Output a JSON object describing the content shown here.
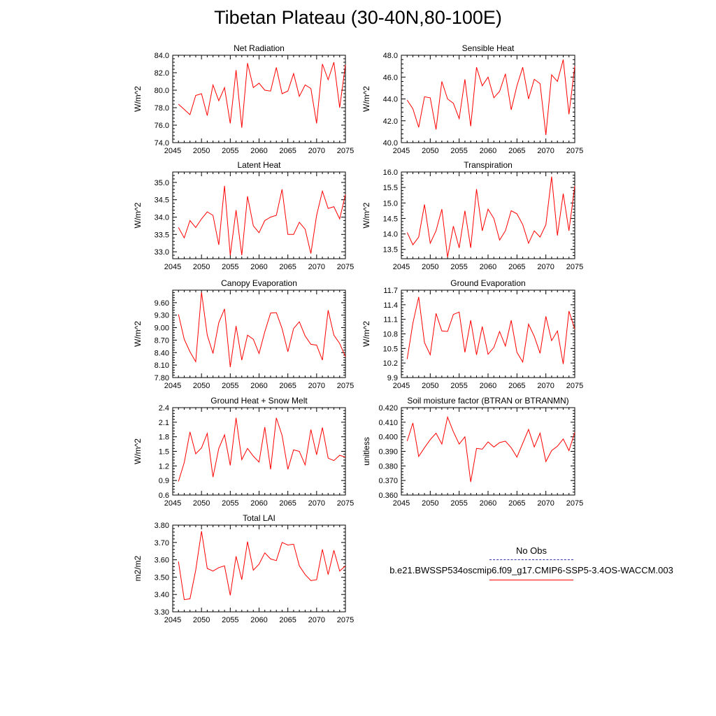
{
  "title": "Tibetan Plateau (30-40N,80-100E)",
  "legend": {
    "entries": [
      {
        "label": "No Obs",
        "color": "#3333aa",
        "style": "dashed"
      },
      {
        "label": "b.e21.BWSSP534oscmip6.f09_g17.CMIP6-SSP5-3.4OS-WACCM.003",
        "color": "#ff0000",
        "style": "solid"
      }
    ]
  },
  "chart_data": [
    {
      "type": "line",
      "title": "Net Radiation",
      "ylabel": "W/m^2",
      "xlim": [
        2045,
        2075
      ],
      "ylim": [
        74.0,
        84.0
      ],
      "xticks": [
        2045,
        2050,
        2055,
        2060,
        2065,
        2070,
        2075
      ],
      "yticks": [
        "74.0",
        "76.0",
        "78.0",
        "80.0",
        "82.0",
        "84.0"
      ],
      "series": [
        {
          "color": "#ff0000",
          "x": [
            2046,
            2047,
            2048,
            2049,
            2050,
            2051,
            2052,
            2053,
            2054,
            2055,
            2056,
            2057,
            2058,
            2059,
            2060,
            2061,
            2062,
            2063,
            2064,
            2065,
            2066,
            2067,
            2068,
            2069,
            2070,
            2071,
            2072,
            2073,
            2074,
            2075
          ],
          "values": [
            78.4,
            77.8,
            77.2,
            79.4,
            79.6,
            77.1,
            80.6,
            78.8,
            80.3,
            76.2,
            82.3,
            75.7,
            83.1,
            80.3,
            80.8,
            80.0,
            79.9,
            82.6,
            79.6,
            79.9,
            81.9,
            79.3,
            80.6,
            80.2,
            76.2,
            83.0,
            81.2,
            83.2,
            78.0,
            82.9
          ]
        }
      ]
    },
    {
      "type": "line",
      "title": "Sensible Heat",
      "ylabel": "W/m^2",
      "xlim": [
        2045,
        2075
      ],
      "ylim": [
        40.0,
        48.0
      ],
      "xticks": [
        2045,
        2050,
        2055,
        2060,
        2065,
        2070,
        2075
      ],
      "yticks": [
        "40.0",
        "42.0",
        "44.0",
        "46.0",
        "48.0"
      ],
      "series": [
        {
          "color": "#ff0000",
          "x": [
            2046,
            2047,
            2048,
            2049,
            2050,
            2051,
            2052,
            2053,
            2054,
            2055,
            2056,
            2057,
            2058,
            2059,
            2060,
            2061,
            2062,
            2063,
            2064,
            2065,
            2066,
            2067,
            2068,
            2069,
            2070,
            2071,
            2072,
            2073,
            2074,
            2075
          ],
          "values": [
            43.9,
            43.1,
            41.4,
            44.2,
            44.1,
            41.2,
            45.6,
            44.0,
            43.6,
            42.2,
            45.8,
            41.5,
            46.9,
            45.2,
            46.0,
            44.1,
            44.7,
            46.3,
            43.0,
            45.2,
            46.9,
            44.0,
            45.8,
            45.4,
            40.7,
            46.2,
            45.6,
            47.6,
            42.6,
            47.0
          ]
        }
      ]
    },
    {
      "type": "line",
      "title": "Latent Heat",
      "ylabel": "W/m^2",
      "xlim": [
        2045,
        2075
      ],
      "ylim": [
        32.8,
        35.3
      ],
      "xticks": [
        2045,
        2050,
        2055,
        2060,
        2065,
        2070,
        2075
      ],
      "yticks": [
        "33.0",
        "33.5",
        "34.0",
        "34.5",
        "35.0"
      ],
      "series": [
        {
          "color": "#ff0000",
          "x": [
            2046,
            2047,
            2048,
            2049,
            2050,
            2051,
            2052,
            2053,
            2054,
            2055,
            2056,
            2057,
            2058,
            2059,
            2060,
            2061,
            2062,
            2063,
            2064,
            2065,
            2066,
            2067,
            2068,
            2069,
            2070,
            2071,
            2072,
            2073,
            2074,
            2075
          ],
          "values": [
            33.7,
            33.4,
            33.9,
            33.7,
            33.95,
            34.15,
            34.05,
            33.2,
            34.9,
            32.9,
            34.2,
            32.9,
            34.6,
            33.75,
            33.55,
            33.9,
            34.0,
            34.05,
            34.8,
            33.5,
            33.5,
            33.85,
            33.65,
            32.95,
            34.05,
            34.75,
            34.25,
            34.3,
            33.95,
            34.65
          ]
        }
      ]
    },
    {
      "type": "line",
      "title": "Transpiration",
      "ylabel": "W/m^2",
      "xlim": [
        2045,
        2075
      ],
      "ylim": [
        13.2,
        16.0
      ],
      "xticks": [
        2045,
        2050,
        2055,
        2060,
        2065,
        2070,
        2075
      ],
      "yticks": [
        "13.5",
        "14.0",
        "14.5",
        "15.0",
        "15.5",
        "16.0"
      ],
      "series": [
        {
          "color": "#ff0000",
          "x": [
            2046,
            2047,
            2048,
            2049,
            2050,
            2051,
            2052,
            2053,
            2054,
            2055,
            2056,
            2057,
            2058,
            2059,
            2060,
            2061,
            2062,
            2063,
            2064,
            2065,
            2066,
            2067,
            2068,
            2069,
            2070,
            2071,
            2072,
            2073,
            2074,
            2075
          ],
          "values": [
            14.05,
            13.65,
            13.9,
            14.95,
            13.7,
            14.1,
            14.8,
            13.25,
            14.25,
            13.55,
            14.75,
            13.55,
            15.45,
            14.1,
            14.8,
            14.5,
            13.8,
            14.1,
            14.75,
            14.65,
            14.3,
            13.7,
            14.1,
            13.9,
            14.3,
            15.85,
            13.95,
            15.3,
            14.1,
            15.55
          ]
        }
      ]
    },
    {
      "type": "line",
      "title": "Canopy Evaporation",
      "ylabel": "W/m^2",
      "xlim": [
        2045,
        2075
      ],
      "ylim": [
        7.8,
        9.9
      ],
      "xticks": [
        2045,
        2050,
        2055,
        2060,
        2065,
        2070,
        2075
      ],
      "yticks": [
        "7.80",
        "8.10",
        "8.40",
        "8.70",
        "9.00",
        "9.30",
        "9.60"
      ],
      "series": [
        {
          "color": "#ff0000",
          "x": [
            2046,
            2047,
            2048,
            2049,
            2050,
            2051,
            2052,
            2053,
            2054,
            2055,
            2056,
            2057,
            2058,
            2059,
            2060,
            2061,
            2062,
            2063,
            2064,
            2065,
            2066,
            2067,
            2068,
            2069,
            2070,
            2071,
            2072,
            2073,
            2074,
            2075
          ],
          "values": [
            9.32,
            8.72,
            8.42,
            8.18,
            9.85,
            8.82,
            8.38,
            9.12,
            9.45,
            8.05,
            9.04,
            8.22,
            8.82,
            8.72,
            8.38,
            8.9,
            9.35,
            9.36,
            8.98,
            8.42,
            8.98,
            9.14,
            8.8,
            8.6,
            8.58,
            8.22,
            9.42,
            8.82,
            8.62,
            8.3
          ]
        }
      ]
    },
    {
      "type": "line",
      "title": "Ground Evaporation",
      "ylabel": "W/m^2",
      "xlim": [
        2045,
        2075
      ],
      "ylim": [
        9.9,
        11.7
      ],
      "xticks": [
        2045,
        2050,
        2055,
        2060,
        2065,
        2070,
        2075
      ],
      "yticks": [
        "9.9",
        "10.2",
        "10.5",
        "10.8",
        "11.1",
        "11.4",
        "11.7"
      ],
      "series": [
        {
          "color": "#ff0000",
          "x": [
            2046,
            2047,
            2048,
            2049,
            2050,
            2051,
            2052,
            2053,
            2054,
            2055,
            2056,
            2057,
            2058,
            2059,
            2060,
            2061,
            2062,
            2063,
            2064,
            2065,
            2066,
            2067,
            2068,
            2069,
            2070,
            2071,
            2072,
            2073,
            2074,
            2075
          ],
          "values": [
            10.28,
            11.02,
            11.56,
            10.62,
            10.37,
            11.22,
            10.86,
            10.85,
            11.2,
            11.25,
            10.42,
            11.08,
            10.37,
            10.95,
            10.38,
            10.52,
            10.85,
            10.55,
            11.08,
            10.42,
            10.22,
            11.0,
            10.75,
            10.4,
            11.16,
            10.66,
            10.86,
            10.18,
            11.27,
            10.9
          ]
        }
      ]
    },
    {
      "type": "line",
      "title": "Ground Heat + Snow Melt",
      "ylabel": "W/m^2",
      "xlim": [
        2045,
        2075
      ],
      "ylim": [
        0.6,
        2.4
      ],
      "xticks": [
        2045,
        2050,
        2055,
        2060,
        2065,
        2070,
        2075
      ],
      "yticks": [
        "0.6",
        "0.9",
        "1.2",
        "1.5",
        "1.8",
        "2.1",
        "2.4"
      ],
      "series": [
        {
          "color": "#ff0000",
          "x": [
            2046,
            2047,
            2048,
            2049,
            2050,
            2051,
            2052,
            2053,
            2054,
            2055,
            2056,
            2057,
            2058,
            2059,
            2060,
            2061,
            2062,
            2063,
            2064,
            2065,
            2066,
            2067,
            2068,
            2069,
            2070,
            2071,
            2072,
            2073,
            2074,
            2075
          ],
          "values": [
            0.88,
            1.27,
            1.9,
            1.45,
            1.57,
            1.87,
            0.97,
            1.56,
            1.84,
            1.21,
            2.19,
            1.33,
            1.56,
            1.4,
            1.28,
            2.0,
            1.13,
            2.19,
            1.83,
            1.13,
            1.53,
            1.5,
            1.22,
            1.95,
            1.43,
            1.99,
            1.36,
            1.31,
            1.42,
            1.38
          ]
        }
      ]
    },
    {
      "type": "line",
      "title": "Soil moisture factor (BTRAN or BTRANMN)",
      "ylabel": "unitless",
      "xlim": [
        2045,
        2075
      ],
      "ylim": [
        0.36,
        0.42
      ],
      "xticks": [
        2045,
        2050,
        2055,
        2060,
        2065,
        2070,
        2075
      ],
      "yticks": [
        "0.360",
        "0.370",
        "0.380",
        "0.390",
        "0.400",
        "0.410",
        "0.420"
      ],
      "series": [
        {
          "color": "#ff0000",
          "x": [
            2046,
            2047,
            2048,
            2049,
            2050,
            2051,
            2052,
            2053,
            2054,
            2055,
            2056,
            2057,
            2058,
            2059,
            2060,
            2061,
            2062,
            2063,
            2064,
            2065,
            2066,
            2067,
            2068,
            2069,
            2070,
            2071,
            2072,
            2073,
            2074,
            2075
          ],
          "values": [
            0.397,
            0.4095,
            0.3865,
            0.3925,
            0.398,
            0.4025,
            0.395,
            0.4135,
            0.4035,
            0.395,
            0.4,
            0.369,
            0.392,
            0.3915,
            0.3965,
            0.393,
            0.396,
            0.397,
            0.3925,
            0.386,
            0.3955,
            0.405,
            0.393,
            0.4025,
            0.383,
            0.3905,
            0.3935,
            0.3985,
            0.3905,
            0.403
          ]
        }
      ]
    },
    {
      "type": "line",
      "title": "Total LAI",
      "ylabel": "m2/m2",
      "xlim": [
        2045,
        2075
      ],
      "ylim": [
        3.3,
        3.8
      ],
      "xticks": [
        2045,
        2050,
        2055,
        2060,
        2065,
        2070,
        2075
      ],
      "yticks": [
        "3.30",
        "3.40",
        "3.50",
        "3.60",
        "3.70",
        "3.80"
      ],
      "series": [
        {
          "color": "#ff0000",
          "x": [
            2046,
            2047,
            2048,
            2049,
            2050,
            2051,
            2052,
            2053,
            2054,
            2055,
            2056,
            2057,
            2058,
            2059,
            2060,
            2061,
            2062,
            2063,
            2064,
            2065,
            2066,
            2067,
            2068,
            2069,
            2070,
            2071,
            2072,
            2073,
            2074,
            2075
          ],
          "values": [
            3.59,
            3.37,
            3.375,
            3.54,
            3.765,
            3.55,
            3.535,
            3.555,
            3.565,
            3.395,
            3.62,
            3.485,
            3.705,
            3.54,
            3.575,
            3.64,
            3.605,
            3.595,
            3.7,
            3.685,
            3.69,
            3.565,
            3.515,
            3.48,
            3.485,
            3.66,
            3.515,
            3.655,
            3.535,
            3.565
          ]
        }
      ]
    }
  ]
}
